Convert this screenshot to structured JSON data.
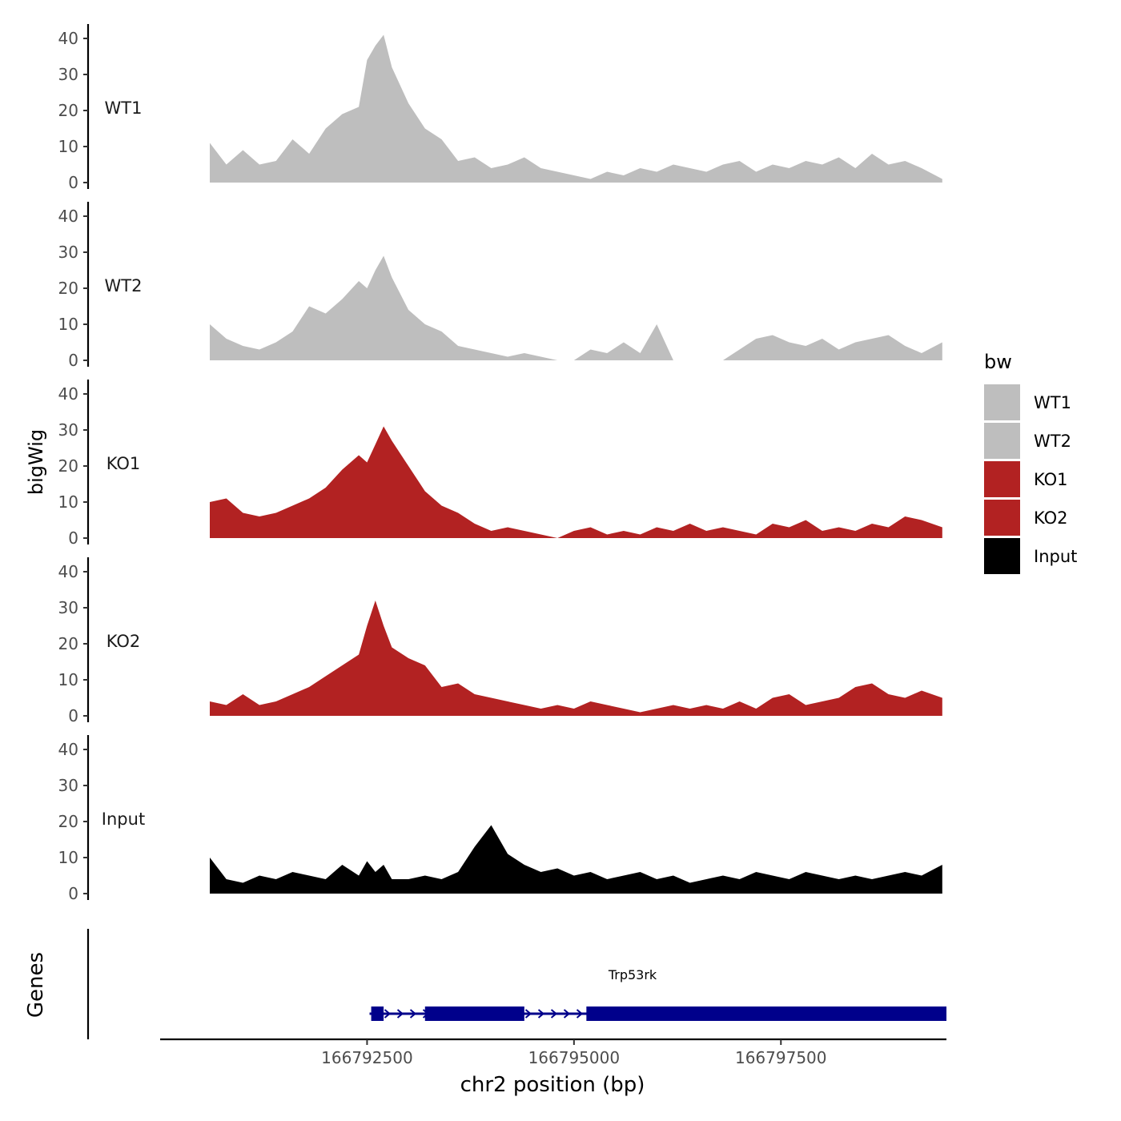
{
  "chart_data": {
    "type": "area",
    "chromosome": "chr2",
    "xlabel": "chr2 position (bp)",
    "ylabel": "bigWig",
    "genes_label": "Genes",
    "xlim": [
      166790000,
      166799500
    ],
    "ylim": [
      0,
      42
    ],
    "xticks": [
      166792500,
      166795000,
      166797500
    ],
    "xtick_labels": [
      "166792500",
      "166795000",
      "166797500"
    ],
    "yticks": [
      0,
      10,
      20,
      30,
      40
    ],
    "ytick_labels": [
      "0",
      "10",
      "20",
      "30",
      "40"
    ],
    "legend": {
      "title": "bw",
      "entries": [
        {
          "label": "WT1",
          "color": "#BEBEBE"
        },
        {
          "label": "WT2",
          "color": "#BEBEBE"
        },
        {
          "label": "KO1",
          "color": "#B22222"
        },
        {
          "label": "KO2",
          "color": "#B22222"
        },
        {
          "label": "Input",
          "color": "#000000"
        }
      ]
    },
    "x": [
      166790600,
      166790800,
      166791000,
      166791200,
      166791400,
      166791600,
      166791800,
      166792000,
      166792200,
      166792400,
      166792500,
      166792600,
      166792700,
      166792800,
      166793000,
      166793200,
      166793400,
      166793600,
      166793800,
      166794000,
      166794200,
      166794400,
      166794600,
      166794800,
      166795000,
      166795200,
      166795400,
      166795600,
      166795800,
      166796000,
      166796200,
      166796400,
      166796600,
      166796800,
      166797000,
      166797200,
      166797400,
      166797600,
      166797800,
      166798000,
      166798200,
      166798400,
      166798600,
      166798800,
      166799000,
      166799200,
      166799450
    ],
    "series": [
      {
        "name": "WT1",
        "color": "#BEBEBE",
        "values": [
          11,
          5,
          9,
          5,
          6,
          12,
          8,
          15,
          19,
          21,
          34,
          38,
          41,
          32,
          22,
          15,
          12,
          6,
          7,
          4,
          5,
          7,
          4,
          3,
          2,
          1,
          3,
          2,
          4,
          3,
          5,
          4,
          3,
          5,
          6,
          3,
          5,
          4,
          6,
          5,
          7,
          4,
          8,
          5,
          6,
          4,
          1
        ]
      },
      {
        "name": "WT2",
        "color": "#BEBEBE",
        "values": [
          10,
          6,
          4,
          3,
          5,
          8,
          15,
          13,
          17,
          22,
          20,
          25,
          29,
          23,
          14,
          10,
          8,
          4,
          3,
          2,
          1,
          2,
          1,
          0,
          0,
          3,
          2,
          5,
          2,
          10,
          0,
          0,
          0,
          0,
          3,
          6,
          7,
          5,
          4,
          6,
          3,
          5,
          6,
          7,
          4,
          2,
          5
        ]
      },
      {
        "name": "KO1",
        "color": "#B22222",
        "values": [
          10,
          11,
          7,
          6,
          7,
          9,
          11,
          14,
          19,
          23,
          21,
          26,
          31,
          27,
          20,
          13,
          9,
          7,
          4,
          2,
          3,
          2,
          1,
          0,
          2,
          3,
          1,
          2,
          1,
          3,
          2,
          4,
          2,
          3,
          2,
          1,
          4,
          3,
          5,
          2,
          3,
          2,
          4,
          3,
          6,
          5,
          3
        ]
      },
      {
        "name": "KO2",
        "color": "#B22222",
        "values": [
          4,
          3,
          6,
          3,
          4,
          6,
          8,
          11,
          14,
          17,
          25,
          32,
          25,
          19,
          16,
          14,
          8,
          9,
          6,
          5,
          4,
          3,
          2,
          3,
          2,
          4,
          3,
          2,
          1,
          2,
          3,
          2,
          3,
          2,
          4,
          2,
          5,
          6,
          3,
          4,
          5,
          8,
          9,
          6,
          5,
          7,
          5
        ]
      },
      {
        "name": "Input",
        "color": "#000000",
        "values": [
          10,
          4,
          3,
          5,
          4,
          6,
          5,
          4,
          8,
          5,
          9,
          6,
          8,
          4,
          4,
          5,
          4,
          6,
          13,
          19,
          11,
          8,
          6,
          7,
          5,
          6,
          4,
          5,
          6,
          4,
          5,
          3,
          4,
          5,
          4,
          6,
          5,
          4,
          6,
          5,
          4,
          5,
          4,
          5,
          6,
          5,
          8
        ]
      }
    ],
    "genes": [
      {
        "name": "Trp53rk",
        "color": "#00008B",
        "start": 166792530,
        "end": 166799500,
        "strand": "+",
        "exons": [
          [
            166792550,
            166792700
          ],
          [
            166793200,
            166794400
          ],
          [
            166795150,
            166799500
          ]
        ]
      }
    ]
  }
}
